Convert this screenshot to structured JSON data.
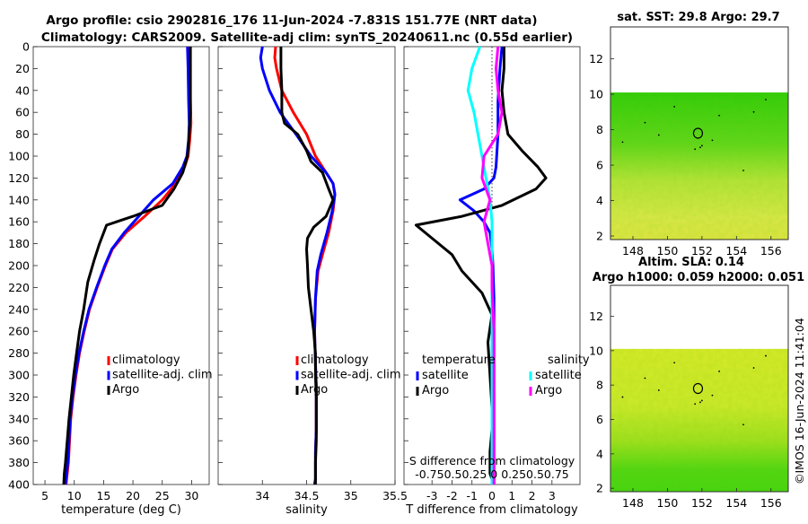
{
  "title_line1": "Argo profile: csio 2902816_176 11-Jun-2024 -7.831S 151.77E (NRT data)",
  "title_line2": "Climatology: CARS2009. Satellite-adj clim: synTS_20240611.nc (0.55d earlier)",
  "footer": "©IMOS 16-Jun-2024 11:41:04",
  "colors": {
    "climatology": "#ff0000",
    "satellite": "#0000ff",
    "argo": "#000000",
    "sat_salinity": "#00ffff",
    "argo_salinity": "#ff00ff"
  },
  "chart_data": [
    {
      "type": "line",
      "id": "temperature",
      "xlabel": "temperature (deg C)",
      "xlim": [
        3,
        33
      ],
      "ylim": [
        0,
        400
      ],
      "xticks": [
        5,
        10,
        15,
        20,
        25,
        30
      ],
      "yticks": [
        0,
        20,
        40,
        60,
        80,
        100,
        120,
        140,
        160,
        180,
        200,
        220,
        240,
        260,
        280,
        300,
        320,
        340,
        360,
        380,
        400
      ],
      "legend": [
        "climatology",
        "satellite-adj. clim",
        "Argo"
      ],
      "series": [
        {
          "name": "climatology",
          "color": "#ff0000",
          "x": [
            29.6,
            29.7,
            29.8,
            29.9,
            29.7,
            29.4,
            28.8,
            27.3,
            25.0,
            22.0,
            18.8,
            16.5,
            15.3,
            13.9,
            12.6,
            11.7,
            10.9,
            10.3,
            9.8,
            9.4,
            9.2,
            9.0,
            8.8,
            8.6
          ],
          "y": [
            0,
            20,
            50,
            70,
            85,
            100,
            110,
            125,
            140,
            155,
            170,
            185,
            200,
            220,
            240,
            260,
            280,
            300,
            320,
            340,
            360,
            380,
            390,
            400
          ]
        },
        {
          "name": "satellite-adj. clim",
          "color": "#0000ff",
          "x": [
            29.3,
            29.4,
            29.5,
            29.6,
            29.5,
            29.2,
            28.5,
            26.8,
            23.5,
            21.0,
            18.5,
            16.4,
            15.2,
            13.8,
            12.5,
            11.6,
            10.8,
            10.2,
            9.7,
            9.3,
            9.1,
            8.9,
            8.7,
            8.5
          ],
          "y": [
            0,
            20,
            50,
            70,
            85,
            100,
            110,
            125,
            140,
            155,
            170,
            185,
            200,
            220,
            240,
            260,
            280,
            300,
            320,
            340,
            360,
            380,
            390,
            400
          ]
        },
        {
          "name": "Argo",
          "color": "#000000",
          "x": [
            29.8,
            29.8,
            29.8,
            29.8,
            29.6,
            29.3,
            28.5,
            27.0,
            25.0,
            20.0,
            15.5,
            14.3,
            13.4,
            12.3,
            11.6,
            10.9,
            10.4,
            9.9,
            9.5,
            9.1,
            8.8,
            8.5,
            8.3,
            8.2
          ],
          "y": [
            0,
            20,
            40,
            60,
            80,
            100,
            115,
            130,
            145,
            155,
            163,
            180,
            195,
            215,
            240,
            260,
            280,
            300,
            320,
            340,
            360,
            380,
            390,
            400
          ]
        }
      ]
    },
    {
      "type": "line",
      "id": "salinity",
      "xlabel": "salinity",
      "xlim": [
        33.5,
        35.5
      ],
      "ylim": [
        0,
        400
      ],
      "xticks": [
        34,
        34.5,
        35,
        35.5
      ],
      "legend": [
        "climatology",
        "satellite-adj. clim",
        "Argo"
      ],
      "series": [
        {
          "name": "climatology",
          "color": "#ff0000",
          "x": [
            34.15,
            34.14,
            34.16,
            34.22,
            34.35,
            34.5,
            34.6,
            34.72,
            34.8,
            34.82,
            34.8,
            34.75,
            34.68,
            34.63,
            34.6,
            34.59,
            34.6,
            34.61,
            34.61,
            34.61,
            34.6,
            34.6,
            34.6,
            34.59
          ],
          "y": [
            0,
            10,
            20,
            40,
            60,
            80,
            100,
            115,
            125,
            135,
            150,
            170,
            190,
            205,
            230,
            260,
            290,
            310,
            330,
            350,
            370,
            390,
            395,
            400
          ]
        },
        {
          "name": "satellite-adj. clim",
          "color": "#0000ff",
          "x": [
            34.0,
            33.98,
            34.0,
            34.08,
            34.2,
            34.38,
            34.55,
            34.72,
            34.8,
            34.82,
            34.79,
            34.73,
            34.66,
            34.62,
            34.6,
            34.59,
            34.6,
            34.61,
            34.61,
            34.61,
            34.6,
            34.6,
            34.6,
            34.59
          ],
          "y": [
            0,
            10,
            20,
            40,
            60,
            80,
            100,
            115,
            125,
            135,
            150,
            170,
            190,
            205,
            230,
            260,
            290,
            310,
            330,
            350,
            370,
            390,
            395,
            400
          ]
        },
        {
          "name": "Argo",
          "color": "#000000",
          "x": [
            34.21,
            34.21,
            34.22,
            34.22,
            34.25,
            34.4,
            34.5,
            34.55,
            34.68,
            34.75,
            34.8,
            34.72,
            34.58,
            34.51,
            34.5,
            34.51,
            34.52,
            34.55,
            34.58,
            34.6,
            34.6,
            34.61,
            34.61,
            34.61,
            34.6,
            34.6,
            34.6
          ],
          "y": [
            0,
            20,
            40,
            60,
            70,
            80,
            95,
            105,
            115,
            130,
            140,
            155,
            165,
            175,
            185,
            200,
            220,
            240,
            260,
            280,
            300,
            320,
            340,
            360,
            380,
            395,
            400
          ]
        }
      ]
    },
    {
      "type": "line",
      "id": "difference",
      "xlabel": "T difference from climatology",
      "xlabel_top": "S difference from climatology",
      "xlim": [
        -4.4,
        4.4
      ],
      "ylim": [
        0,
        400
      ],
      "xticks": [
        -3,
        -2,
        -1,
        0,
        1,
        2,
        3
      ],
      "xticks_top_text": "-0.750.50.25 0  0.250.50.75",
      "legend_headers": [
        "temperature",
        "salinity"
      ],
      "legend": [
        "satellite",
        "Argo",
        "satellite",
        "Argo"
      ],
      "series": [
        {
          "name": "temperature satellite",
          "color": "#0000ff",
          "x": [
            0.5,
            0.4,
            0.3,
            0.3,
            0.2,
            0.1,
            -0.4,
            -1.0,
            -1.6,
            -0.9,
            -0.4,
            -0.1,
            0.0,
            0.05,
            0.1,
            0.1,
            0.1,
            0.1,
            0.1,
            0.1,
            0.1,
            0.1,
            0.1
          ],
          "y": [
            0,
            20,
            50,
            80,
            110,
            120,
            130,
            135,
            140,
            150,
            160,
            170,
            185,
            200,
            230,
            260,
            290,
            320,
            350,
            370,
            390,
            398,
            400
          ]
        },
        {
          "name": "temperature Argo",
          "color": "#000000",
          "x": [
            0.6,
            0.6,
            0.5,
            0.6,
            0.8,
            1.5,
            2.3,
            2.7,
            2.2,
            0.5,
            -1.5,
            -3.8,
            -3.0,
            -2.0,
            -1.5,
            -0.5,
            0.0,
            -0.2,
            -0.1,
            0.0,
            0.0,
            -0.1,
            -0.1,
            0.0,
            0.0,
            0.0
          ],
          "y": [
            0,
            20,
            40,
            60,
            80,
            95,
            110,
            120,
            130,
            145,
            155,
            163,
            175,
            190,
            205,
            225,
            245,
            270,
            300,
            330,
            350,
            370,
            390,
            395,
            398,
            400
          ]
        },
        {
          "name": "salinity satellite",
          "color": "#00ffff",
          "x": [
            -0.6,
            -1.0,
            -1.2,
            -0.9,
            -0.7,
            -0.5,
            -0.3,
            -0.1,
            0.0,
            0.0,
            0.0,
            0.0,
            0.0,
            0.0
          ],
          "y": [
            0,
            20,
            40,
            60,
            80,
            100,
            120,
            140,
            160,
            180,
            220,
            300,
            380,
            400
          ]
        },
        {
          "name": "salinity Argo",
          "color": "#ff00ff",
          "x": [
            0.3,
            0.2,
            0.3,
            0.5,
            0.3,
            -0.4,
            -0.5,
            -0.1,
            -0.4,
            -0.2,
            0.0,
            0.0,
            0.1,
            0.1,
            0.1,
            0.1,
            0.1
          ],
          "y": [
            0,
            20,
            40,
            60,
            80,
            100,
            120,
            140,
            160,
            180,
            200,
            220,
            260,
            300,
            340,
            380,
            400
          ]
        }
      ]
    },
    {
      "type": "heatmap",
      "id": "sst_map",
      "title": "sat. SST: 29.8 Argo: 29.7",
      "xlim": [
        146.7,
        157.0
      ],
      "ylim": [
        1.8,
        13.8
      ],
      "xticks": [
        148,
        150,
        152,
        154,
        156
      ],
      "yticks": [
        2,
        4,
        6,
        8,
        10,
        12
      ],
      "data_top_lat": 10.1,
      "float_position": [
        151.77,
        7.8
      ]
    },
    {
      "type": "heatmap",
      "id": "sla_map",
      "title_line1": "Altim. SLA: 0.14",
      "title_line2": "Argo h1000: 0.059 h2000: 0.051",
      "xlim": [
        146.7,
        157.0
      ],
      "ylim": [
        1.8,
        13.8
      ],
      "xticks": [
        148,
        150,
        152,
        154,
        156
      ],
      "yticks": [
        2,
        4,
        6,
        8,
        10,
        12
      ],
      "data_top_lat": 10.1,
      "float_position": [
        151.77,
        7.8
      ]
    }
  ]
}
